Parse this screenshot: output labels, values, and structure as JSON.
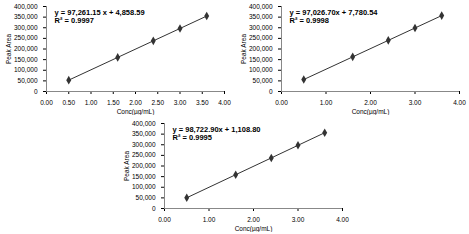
{
  "chart_data": [
    {
      "type": "line",
      "marker": "diamond",
      "color": "#333333",
      "x": [
        0.5,
        1.6,
        2.4,
        3.0,
        3.6
      ],
      "values": [
        53500,
        160500,
        238300,
        296600,
        355000
      ],
      "x_label": "Conc(µg/mL)",
      "y_label": "Peak Area",
      "annotations": [
        "y = 97,261.15 x + 4,858.59",
        "R² = 0.9997"
      ],
      "xlim": [
        0,
        4
      ],
      "ylim": [
        0,
        400000
      ],
      "xticks": [
        {
          "value": 0,
          "label": "0.00"
        },
        {
          "value": 0.5,
          "label": "0.50"
        },
        {
          "value": 1,
          "label": "1.00"
        },
        {
          "value": 1.5,
          "label": "1.50"
        },
        {
          "value": 2,
          "label": "2.00"
        },
        {
          "value": 2.5,
          "label": "2.50"
        },
        {
          "value": 3,
          "label": "3.00"
        },
        {
          "value": 3.5,
          "label": "3.50"
        },
        {
          "value": 4,
          "label": "4.00"
        }
      ],
      "yticks": [
        0,
        {
          "value": 50000,
          "label": "50,000"
        },
        {
          "value": 100000,
          "label": "100,000"
        },
        {
          "value": 150000,
          "label": "150,000"
        },
        {
          "value": 200000,
          "label": "200,000"
        },
        {
          "value": 250000,
          "label": "250,000"
        },
        {
          "value": 300000,
          "label": "300,000"
        },
        {
          "value": 350000,
          "label": "350,000"
        },
        {
          "value": 400000,
          "label": "400,000"
        }
      ]
    },
    {
      "type": "line",
      "marker": "diamond",
      "color": "#333333",
      "x": [
        0.5,
        1.6,
        2.4,
        3.0,
        3.6
      ],
      "values": [
        56300,
        163000,
        240600,
        298900,
        357100
      ],
      "x_label": "Conc(µg/mL)",
      "y_label": "Peak Area",
      "annotations": [
        "y = 97,026.70x + 7,780.54",
        "R² = 0.9998"
      ],
      "xlim": [
        0,
        4
      ],
      "ylim": [
        0,
        400000
      ],
      "xticks": [
        {
          "value": 0,
          "label": "0.00"
        },
        {
          "value": 1,
          "label": "1.00"
        },
        {
          "value": 2,
          "label": "2.00"
        },
        {
          "value": 3,
          "label": "3.00"
        },
        {
          "value": 4,
          "label": "4.00"
        }
      ],
      "yticks": [
        0,
        {
          "value": 50000,
          "label": "50,000"
        },
        {
          "value": 100000,
          "label": "100,000"
        },
        {
          "value": 150000,
          "label": "150,000"
        },
        {
          "value": 200000,
          "label": "200,000"
        },
        {
          "value": 250000,
          "label": "250,000"
        },
        {
          "value": 300000,
          "label": "300,000"
        },
        {
          "value": 350000,
          "label": "350,000"
        },
        {
          "value": 400000,
          "label": "400,000"
        }
      ]
    },
    {
      "type": "line",
      "marker": "diamond",
      "color": "#333333",
      "x": [
        0.5,
        1.6,
        2.4,
        3.0,
        3.6
      ],
      "values": [
        50500,
        159100,
        238000,
        297300,
        356500
      ],
      "x_label": "Conc(µg/mL)",
      "y_label": "Peak Area",
      "annotations": [
        "y = 98,722.90x + 1,108.80",
        "R² = 0.9995"
      ],
      "xlim": [
        0,
        4
      ],
      "ylim": [
        0,
        400000
      ],
      "xticks": [
        {
          "value": 0,
          "label": "0.00"
        },
        {
          "value": 1,
          "label": "1.00"
        },
        {
          "value": 2,
          "label": "2.00"
        },
        {
          "value": 3,
          "label": "3.00"
        },
        {
          "value": 4,
          "label": "4.00"
        }
      ],
      "yticks": [
        0,
        {
          "value": 50000,
          "label": "50,000"
        },
        {
          "value": 100000,
          "label": "100,000"
        },
        {
          "value": 150000,
          "label": "150,000"
        },
        {
          "value": 200000,
          "label": "200,000"
        },
        {
          "value": 250000,
          "label": "250,000"
        },
        {
          "value": 300000,
          "label": "300,000"
        },
        {
          "value": 350000,
          "label": "350,000"
        },
        {
          "value": 400000,
          "label": "400,000"
        }
      ]
    }
  ]
}
